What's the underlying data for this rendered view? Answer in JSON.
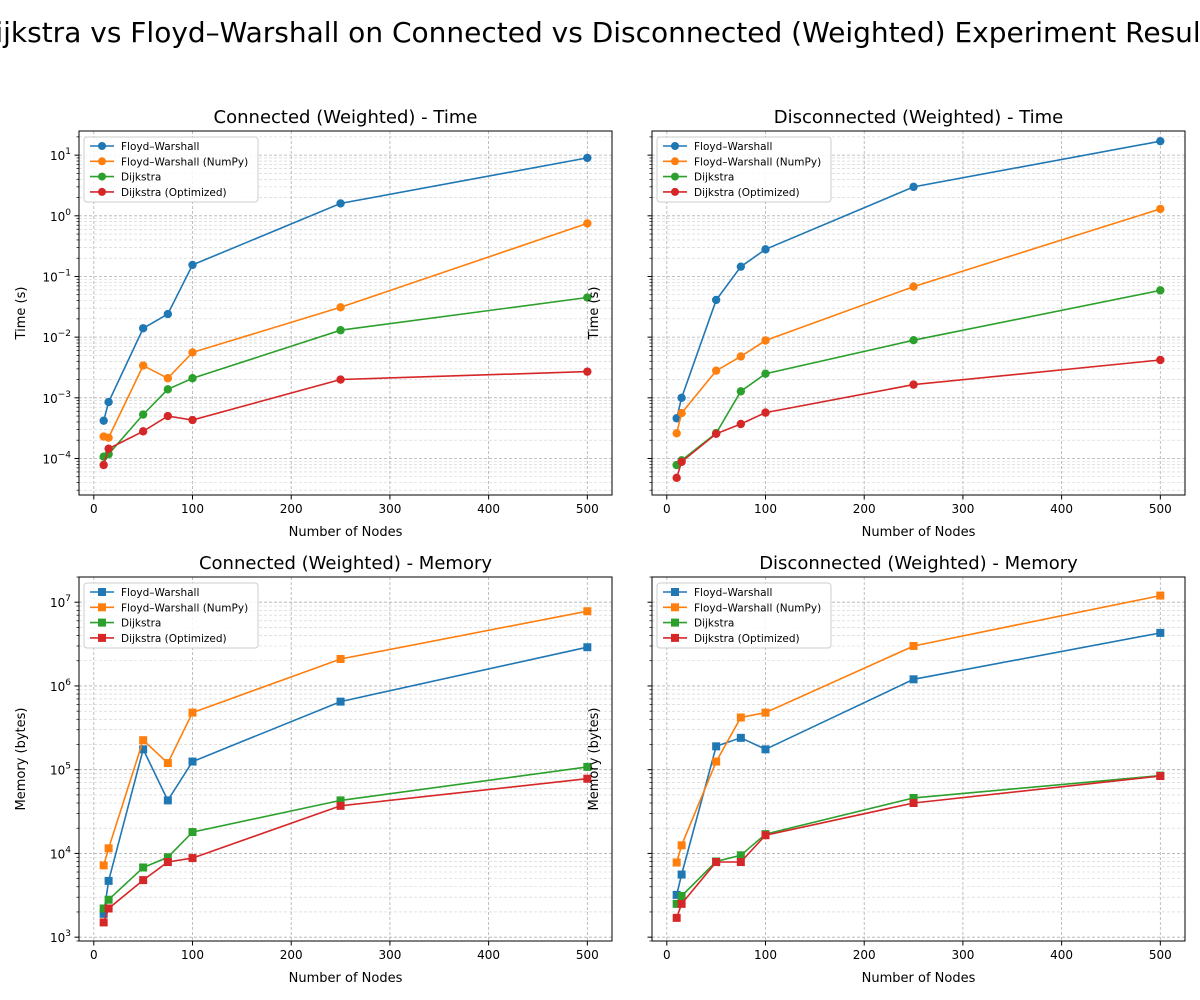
{
  "figure": {
    "suptitle": "Dijkstra vs Floyd–Warshall on Connected vs Disconnected (Weighted) Experiment Results"
  },
  "chart_data": [
    {
      "type": "line",
      "title": "Connected (Weighted) - Time",
      "xlabel": "Number of Nodes",
      "ylabel": "Time (s)",
      "yscale": "log",
      "xlim": [
        -15,
        525
      ],
      "ylim": [
        2.5e-05,
        25
      ],
      "xticks": [
        0,
        100,
        200,
        300,
        400,
        500
      ],
      "yticks": [
        {
          "value": 0.0001,
          "base": "10",
          "exp": "−4"
        },
        {
          "value": 0.001,
          "base": "10",
          "exp": "−3"
        },
        {
          "value": 0.01,
          "base": "10",
          "exp": "−2"
        },
        {
          "value": 0.1,
          "base": "10",
          "exp": "−1"
        },
        {
          "value": 1,
          "base": "10",
          "exp": "0"
        },
        {
          "value": 10,
          "base": "10",
          "exp": "1"
        }
      ],
      "grid": true,
      "marker": "circle",
      "legend_position": "upper-left",
      "x": [
        10,
        15,
        50,
        75,
        100,
        250,
        500
      ],
      "series": [
        {
          "name": "Floyd–Warshall",
          "color": "#1f77b4",
          "values": [
            0.00042,
            0.00085,
            0.014,
            0.024,
            0.155,
            1.6,
            9.0
          ]
        },
        {
          "name": "Floyd–Warshall (NumPy)",
          "color": "#ff7f0e",
          "values": [
            0.00023,
            0.00022,
            0.0034,
            0.0021,
            0.0056,
            0.031,
            0.75
          ]
        },
        {
          "name": "Dijkstra",
          "color": "#2ca02c",
          "values": [
            0.000107,
            0.000118,
            0.00053,
            0.00138,
            0.0021,
            0.013,
            0.045
          ]
        },
        {
          "name": "Dijkstra (Optimized)",
          "color": "#d62728",
          "values": [
            7.8e-05,
            0.000145,
            0.00028,
            0.0005,
            0.00043,
            0.002,
            0.0027
          ]
        }
      ]
    },
    {
      "type": "line",
      "title": "Disconnected (Weighted) - Time",
      "xlabel": "Number of Nodes",
      "ylabel": "Time (s)",
      "yscale": "log",
      "xlim": [
        -15,
        525
      ],
      "ylim": [
        2.5e-05,
        25
      ],
      "xticks": [
        0,
        100,
        200,
        300,
        400,
        500
      ],
      "yticks": [],
      "grid": true,
      "marker": "circle",
      "legend_position": "upper-left",
      "x": [
        10,
        15,
        50,
        75,
        100,
        250,
        500
      ],
      "series": [
        {
          "name": "Floyd–Warshall",
          "color": "#1f77b4",
          "values": [
            0.00046,
            0.001,
            0.041,
            0.145,
            0.28,
            3.0,
            17.0
          ]
        },
        {
          "name": "Floyd–Warshall (NumPy)",
          "color": "#ff7f0e",
          "values": [
            0.00026,
            0.00056,
            0.0028,
            0.0048,
            0.0088,
            0.068,
            1.3
          ]
        },
        {
          "name": "Dijkstra",
          "color": "#2ca02c",
          "values": [
            7.8e-05,
            9.3e-05,
            0.000262,
            0.00128,
            0.0025,
            0.0089,
            0.059
          ]
        },
        {
          "name": "Dijkstra (Optimized)",
          "color": "#d62728",
          "values": [
            4.8e-05,
            8.8e-05,
            0.000255,
            0.00037,
            0.00057,
            0.00165,
            0.0042
          ]
        }
      ]
    },
    {
      "type": "line",
      "title": "Connected (Weighted) - Memory",
      "xlabel": "Number of Nodes",
      "ylabel": "Memory (bytes)",
      "yscale": "log",
      "xlim": [
        -15,
        525
      ],
      "ylim": [
        900,
        20000000
      ],
      "xticks": [
        0,
        100,
        200,
        300,
        400,
        500
      ],
      "yticks": [
        {
          "value": 1000,
          "base": "10",
          "exp": "3"
        },
        {
          "value": 10000,
          "base": "10",
          "exp": "4"
        },
        {
          "value": 100000,
          "base": "10",
          "exp": "5"
        },
        {
          "value": 1000000,
          "base": "10",
          "exp": "6"
        },
        {
          "value": 10000000,
          "base": "10",
          "exp": "7"
        }
      ],
      "grid": true,
      "marker": "square",
      "legend_position": "upper-left",
      "x": [
        10,
        15,
        50,
        75,
        100,
        250,
        500
      ],
      "series": [
        {
          "name": "Floyd–Warshall",
          "color": "#1f77b4",
          "values": [
            1900,
            4700,
            175000,
            43000,
            125000,
            650000,
            2900000
          ]
        },
        {
          "name": "Floyd–Warshall (NumPy)",
          "color": "#ff7f0e",
          "values": [
            7200,
            11500,
            225000,
            120000,
            480000,
            2100000,
            7800000
          ]
        },
        {
          "name": "Dijkstra",
          "color": "#2ca02c",
          "values": [
            2200,
            2800,
            6800,
            9000,
            18000,
            43000,
            108000
          ]
        },
        {
          "name": "Dijkstra (Optimized)",
          "color": "#d62728",
          "values": [
            1500,
            2200,
            4800,
            7900,
            8800,
            37000,
            78000
          ]
        }
      ]
    },
    {
      "type": "line",
      "title": "Disconnected (Weighted) - Memory",
      "xlabel": "Number of Nodes",
      "ylabel": "Memory (bytes)",
      "yscale": "log",
      "xlim": [
        -15,
        525
      ],
      "ylim": [
        900,
        20000000
      ],
      "xticks": [
        0,
        100,
        200,
        300,
        400,
        500
      ],
      "yticks": [],
      "grid": true,
      "marker": "square",
      "legend_position": "upper-left",
      "x": [
        10,
        15,
        50,
        75,
        100,
        250,
        500
      ],
      "series": [
        {
          "name": "Floyd–Warshall",
          "color": "#1f77b4",
          "values": [
            3200,
            5600,
            190000,
            240000,
            175000,
            1200000,
            4300000
          ]
        },
        {
          "name": "Floyd–Warshall (NumPy)",
          "color": "#ff7f0e",
          "values": [
            7800,
            12500,
            125000,
            420000,
            480000,
            3000000,
            12000000
          ]
        },
        {
          "name": "Dijkstra",
          "color": "#2ca02c",
          "values": [
            2500,
            3100,
            8000,
            9500,
            17000,
            46000,
            85000
          ]
        },
        {
          "name": "Dijkstra (Optimized)",
          "color": "#d62728",
          "values": [
            1700,
            2500,
            7900,
            7900,
            16500,
            40000,
            84000
          ]
        }
      ]
    }
  ]
}
